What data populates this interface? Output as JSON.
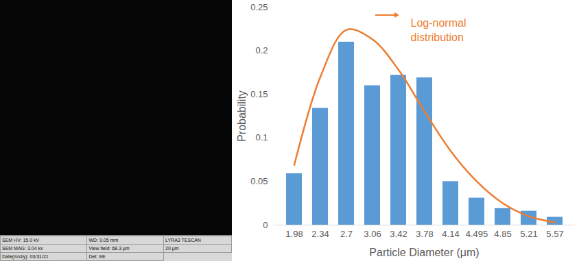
{
  "chart_data": {
    "type": "bar",
    "x_label": "Particle Diameter (μm)",
    "y_label": "Probability",
    "categories": [
      "1.98",
      "2.34",
      "2.7",
      "3.06",
      "3.42",
      "3.78",
      "4.14",
      "4.495",
      "4.85",
      "5.21",
      "5.57"
    ],
    "series": [
      {
        "type": "bar",
        "color": "#5b9bd5",
        "values": [
          0.059,
          0.134,
          0.21,
          0.16,
          0.172,
          0.169,
          0.05,
          0.031,
          0.019,
          0.016,
          0.009
        ]
      },
      {
        "name": "Log-normal distribution",
        "type": "line",
        "color": "#ed7d31",
        "marker": "none",
        "line_style": "solid",
        "values": [
          0.069,
          0.17,
          0.224,
          0.213,
          0.178,
          0.13,
          0.085,
          0.05,
          0.025,
          0.01,
          0.003
        ]
      }
    ],
    "ylim": [
      0,
      0.25
    ],
    "yticks": [
      0,
      0.05,
      0.1,
      0.15,
      0.2,
      0.25
    ],
    "grid": false
  },
  "micrograph": {
    "info_bar": [
      [
        "SEM HV: 15.0 kV",
        "WD: 9.05 mm",
        "LYRA3 TESCAN"
      ],
      [
        "SEM MAG: 3.04 kx",
        "View field: 68.3 μm",
        "20 μm"
      ],
      [
        "Date(m/d/y): 03/31/21",
        "Det: SE"
      ]
    ]
  }
}
